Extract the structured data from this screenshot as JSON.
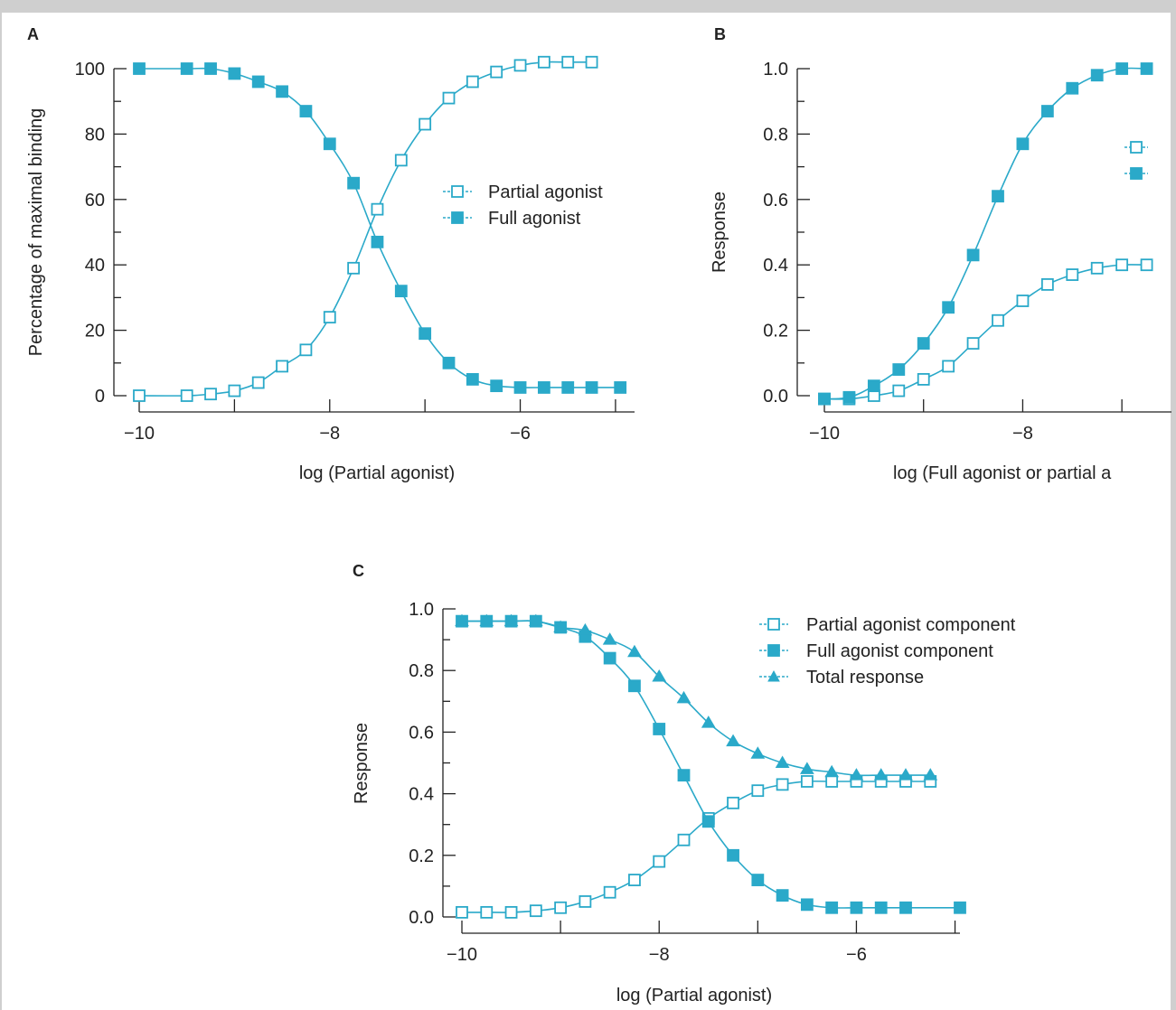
{
  "chart_data": [
    {
      "panel": "A",
      "type": "line",
      "xlabel": "log (Partial agonist)",
      "ylabel": "Percentage of maximal binding",
      "xlim": [
        -10,
        -4.8
      ],
      "ylim": [
        0,
        100
      ],
      "xticks": [
        -10,
        -8,
        -6
      ],
      "xtick_labels": [
        "−10",
        "−8",
        "−6"
      ],
      "yticks": [
        0,
        20,
        40,
        60,
        80,
        100
      ],
      "ytick_labels": [
        "0",
        "20",
        "40",
        "60",
        "80",
        "100"
      ],
      "legend_position": "center-right",
      "color": "#2aa9c9",
      "series": [
        {
          "name": "Partial agonist",
          "marker": "open-square",
          "x": [
            -10,
            -9.5,
            -9.25,
            -9,
            -8.75,
            -8.5,
            -8.25,
            -8,
            -7.75,
            -7.5,
            -7.25,
            -7,
            -6.75,
            -6.5,
            -6.25,
            -6,
            -5.75,
            -5.5,
            -5.25
          ],
          "y": [
            0,
            0,
            0.5,
            1.5,
            4,
            9,
            14,
            24,
            39,
            57,
            72,
            83,
            91,
            96,
            99,
            101,
            102,
            102,
            102
          ]
        },
        {
          "name": "Full agonist",
          "marker": "filled-square",
          "x": [
            -10,
            -9.5,
            -9.25,
            -9,
            -8.75,
            -8.5,
            -8.25,
            -8,
            -7.75,
            -7.5,
            -7.25,
            -7,
            -6.75,
            -6.5,
            -6.25,
            -6,
            -5.75,
            -5.5,
            -5.25,
            -4.95
          ],
          "y": [
            100,
            100,
            100,
            98.5,
            96,
            93,
            87,
            77,
            65,
            47,
            32,
            19,
            10,
            5,
            3,
            2.5,
            2.5,
            2.5,
            2.5,
            2.5
          ]
        }
      ]
    },
    {
      "panel": "B",
      "type": "line",
      "xlabel": "log (Full agonist or partial a",
      "ylabel": "Response",
      "xlim": [
        -10,
        -6.5
      ],
      "ylim": [
        0,
        1
      ],
      "xticks": [
        -10,
        -8
      ],
      "xtick_labels": [
        "−10",
        "−8"
      ],
      "yticks": [
        0,
        0.2,
        0.4,
        0.6,
        0.8,
        1.0
      ],
      "ytick_labels": [
        "0.0",
        "0.2",
        "0.4",
        "0.6",
        "0.8",
        "1.0"
      ],
      "legend_position": "right",
      "color": "#2aa9c9",
      "series": [
        {
          "marker": "open-square",
          "x": [
            -10,
            -9.75,
            -9.5,
            -9.25,
            -9,
            -8.75,
            -8.5,
            -8.25,
            -8,
            -7.75,
            -7.5,
            -7.25,
            -7,
            -6.75
          ],
          "y": [
            -0.01,
            -0.01,
            0,
            0.015,
            0.05,
            0.09,
            0.16,
            0.23,
            0.29,
            0.34,
            0.37,
            0.39,
            0.4,
            0.4
          ]
        },
        {
          "marker": "filled-square",
          "x": [
            -10,
            -9.75,
            -9.5,
            -9.25,
            -9,
            -8.75,
            -8.5,
            -8.25,
            -8,
            -7.75,
            -7.5,
            -7.25,
            -7,
            -6.75
          ],
          "y": [
            -0.01,
            -0.005,
            0.03,
            0.08,
            0.16,
            0.27,
            0.43,
            0.61,
            0.77,
            0.87,
            0.94,
            0.98,
            1.0,
            1.0
          ]
        }
      ]
    },
    {
      "panel": "C",
      "type": "line",
      "xlabel": "log (Partial agonist)",
      "ylabel": "Response",
      "xlim": [
        -10,
        -4.95
      ],
      "ylim": [
        0,
        1
      ],
      "xticks": [
        -10,
        -8,
        -6
      ],
      "xtick_labels": [
        "−10",
        "−8",
        "−6"
      ],
      "yticks": [
        0,
        0.2,
        0.4,
        0.6,
        0.8,
        1.0
      ],
      "ytick_labels": [
        "0.0",
        "0.2",
        "0.4",
        "0.6",
        "0.8",
        "1.0"
      ],
      "legend_position": "top-right",
      "color": "#2aa9c9",
      "series": [
        {
          "name": "Partial agonist component",
          "marker": "open-square",
          "x": [
            -10,
            -9.75,
            -9.5,
            -9.25,
            -9,
            -8.75,
            -8.5,
            -8.25,
            -8,
            -7.75,
            -7.5,
            -7.25,
            -7,
            -6.75,
            -6.5,
            -6.25,
            -6,
            -5.75,
            -5.5,
            -5.25
          ],
          "y": [
            0.015,
            0.015,
            0.015,
            0.02,
            0.03,
            0.05,
            0.08,
            0.12,
            0.18,
            0.25,
            0.32,
            0.37,
            0.41,
            0.43,
            0.44,
            0.44,
            0.44,
            0.44,
            0.44,
            0.44
          ]
        },
        {
          "name": "Full agonist component",
          "marker": "filled-square",
          "x": [
            -10,
            -9.75,
            -9.5,
            -9.25,
            -9,
            -8.75,
            -8.5,
            -8.25,
            -8,
            -7.75,
            -7.5,
            -7.25,
            -7,
            -6.75,
            -6.5,
            -6.25,
            -6,
            -5.75,
            -5.5,
            -4.95
          ],
          "y": [
            0.96,
            0.96,
            0.96,
            0.96,
            0.94,
            0.91,
            0.84,
            0.75,
            0.61,
            0.46,
            0.31,
            0.2,
            0.12,
            0.07,
            0.04,
            0.03,
            0.03,
            0.03,
            0.03,
            0.03
          ]
        },
        {
          "name": "Total response",
          "marker": "filled-triangle",
          "x": [
            -10,
            -9.75,
            -9.5,
            -9.25,
            -9,
            -8.75,
            -8.5,
            -8.25,
            -8,
            -7.75,
            -7.5,
            -7.25,
            -7,
            -6.75,
            -6.5,
            -6.25,
            -6,
            -5.75,
            -5.5,
            -5.25
          ],
          "y": [
            0.96,
            0.96,
            0.96,
            0.96,
            0.94,
            0.93,
            0.9,
            0.86,
            0.78,
            0.71,
            0.63,
            0.57,
            0.53,
            0.5,
            0.48,
            0.47,
            0.46,
            0.46,
            0.46,
            0.46
          ]
        }
      ]
    }
  ],
  "panels": {
    "A": {
      "letter": "A",
      "xlabel": "log (Partial agonist)",
      "ylabel": "Percentage of maximal binding",
      "legend": [
        "Partial agonist",
        "Full agonist"
      ]
    },
    "B": {
      "letter": "B",
      "xlabel": "log (Full agonist or partial a",
      "ylabel": "Response"
    },
    "C": {
      "letter": "C",
      "xlabel": "log (Partial agonist)",
      "ylabel": "Response",
      "legend": [
        "Partial agonist component",
        "Full agonist component",
        "Total response"
      ]
    }
  }
}
